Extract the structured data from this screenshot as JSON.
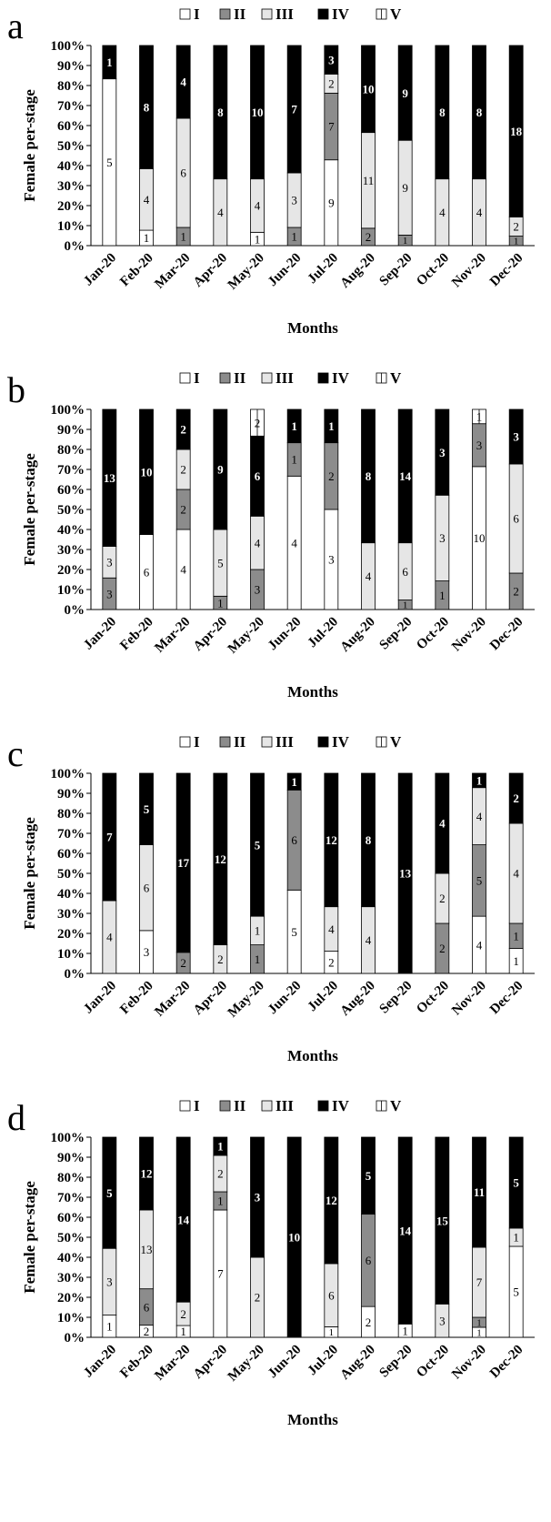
{
  "legend": [
    "I",
    "II",
    "III",
    "IV",
    "V"
  ],
  "colors": {
    "I": "#ffffff",
    "II": "#8c8c8c",
    "III": "#e6e6e6",
    "IV": "#000000",
    "V": "#ffffff"
  },
  "chart_data": [
    {
      "type": "bar",
      "panel_label": "a",
      "categories": [
        "Jan-20",
        "Feb-20",
        "Mar-20",
        "Apr-20",
        "May-20",
        "Jun-20",
        "Jul-20",
        "Aug-20",
        "Sep-20",
        "Oct-20",
        "Nov-20",
        "Dec-20"
      ],
      "series": [
        {
          "name": "I",
          "values": [
            5,
            1,
            0,
            0,
            1,
            0,
            9,
            0,
            0,
            0,
            0,
            0
          ]
        },
        {
          "name": "II",
          "values": [
            0,
            0,
            1,
            0,
            0,
            1,
            7,
            2,
            1,
            0,
            0,
            1
          ]
        },
        {
          "name": "III",
          "values": [
            0,
            4,
            6,
            4,
            4,
            3,
            2,
            11,
            9,
            4,
            4,
            2
          ]
        },
        {
          "name": "IV",
          "values": [
            1,
            8,
            4,
            8,
            10,
            7,
            3,
            10,
            9,
            8,
            8,
            18
          ]
        },
        {
          "name": "V",
          "values": [
            0,
            0,
            0,
            0,
            0,
            0,
            0,
            0,
            0,
            0,
            0,
            0
          ]
        }
      ],
      "ylabel": "Female per-stage",
      "xlabel": "Months",
      "yticks": [
        "0%",
        "10%",
        "20%",
        "30%",
        "40%",
        "50%",
        "60%",
        "70%",
        "80%",
        "90%",
        "100%"
      ],
      "ylim": [
        0,
        100
      ],
      "stacked": "percent"
    },
    {
      "type": "bar",
      "panel_label": "b",
      "categories": [
        "Jan-20",
        "Feb-20",
        "Mar-20",
        "Apr-20",
        "May-20",
        "Jun-20",
        "Jul-20",
        "Aug-20",
        "Sep-20",
        "Oct-20",
        "Nov-20",
        "Dec-20"
      ],
      "series": [
        {
          "name": "I",
          "values": [
            0,
            6,
            4,
            0,
            0,
            4,
            3,
            0,
            0,
            0,
            10,
            0
          ]
        },
        {
          "name": "II",
          "values": [
            3,
            0,
            2,
            1,
            3,
            1,
            2,
            0,
            1,
            1,
            3,
            2
          ]
        },
        {
          "name": "III",
          "values": [
            3,
            0,
            2,
            5,
            4,
            0,
            0,
            4,
            6,
            3,
            0,
            6
          ]
        },
        {
          "name": "IV",
          "values": [
            13,
            10,
            2,
            9,
            6,
            1,
            1,
            8,
            14,
            3,
            0,
            3
          ]
        },
        {
          "name": "V",
          "values": [
            0,
            0,
            0,
            0,
            2,
            0,
            0,
            0,
            0,
            0,
            1,
            0
          ]
        }
      ],
      "ylabel": "Female per-stage",
      "xlabel": "Months",
      "yticks": [
        "0%",
        "10%",
        "20%",
        "30%",
        "40%",
        "50%",
        "60%",
        "70%",
        "80%",
        "90%",
        "100%"
      ],
      "ylim": [
        0,
        100
      ],
      "stacked": "percent"
    },
    {
      "type": "bar",
      "panel_label": "c",
      "categories": [
        "Jan-20",
        "Feb-20",
        "Mar-20",
        "Apr-20",
        "May-20",
        "Jun-20",
        "Jul-20",
        "Aug-20",
        "Sep-20",
        "Oct-20",
        "Nov-20",
        "Dec-20"
      ],
      "series": [
        {
          "name": "I",
          "values": [
            0,
            3,
            0,
            0,
            0,
            5,
            2,
            0,
            0,
            0,
            4,
            1
          ]
        },
        {
          "name": "II",
          "values": [
            0,
            0,
            2,
            0,
            1,
            6,
            0,
            0,
            0,
            2,
            5,
            1
          ]
        },
        {
          "name": "III",
          "values": [
            4,
            6,
            0,
            2,
            1,
            0,
            4,
            4,
            0,
            2,
            4,
            4
          ]
        },
        {
          "name": "IV",
          "values": [
            7,
            5,
            17,
            12,
            5,
            1,
            12,
            8,
            13,
            4,
            1,
            2
          ]
        },
        {
          "name": "V",
          "values": [
            0,
            0,
            0,
            0,
            0,
            0,
            0,
            0,
            0,
            0,
            0,
            0
          ]
        }
      ],
      "ylabel": "Female per-stage",
      "xlabel": "Months",
      "yticks": [
        "0%",
        "10%",
        "20%",
        "30%",
        "40%",
        "50%",
        "60%",
        "70%",
        "80%",
        "90%",
        "100%"
      ],
      "ylim": [
        0,
        100
      ],
      "stacked": "percent"
    },
    {
      "type": "bar",
      "panel_label": "d",
      "categories": [
        "Jan-20",
        "Feb-20",
        "Mar-20",
        "Apr-20",
        "May-20",
        "Jun-20",
        "Jul-20",
        "Aug-20",
        "Sep-20",
        "Oct-20",
        "Nov-20",
        "Dec-20"
      ],
      "series": [
        {
          "name": "I",
          "values": [
            1,
            2,
            1,
            7,
            0,
            0,
            1,
            2,
            1,
            0,
            1,
            5
          ]
        },
        {
          "name": "II",
          "values": [
            0,
            6,
            0,
            1,
            0,
            0,
            0,
            6,
            0,
            0,
            1,
            0
          ]
        },
        {
          "name": "III",
          "values": [
            3,
            13,
            2,
            2,
            2,
            0,
            6,
            0,
            0,
            3,
            7,
            1
          ]
        },
        {
          "name": "IV",
          "values": [
            5,
            12,
            14,
            1,
            3,
            10,
            12,
            5,
            14,
            15,
            11,
            5
          ]
        },
        {
          "name": "V",
          "values": [
            0,
            0,
            0,
            0,
            0,
            0,
            0,
            0,
            0,
            0,
            0,
            0
          ]
        }
      ],
      "ylabel": "Female per-stage",
      "xlabel": "Months",
      "yticks": [
        "0%",
        "10%",
        "20%",
        "30%",
        "40%",
        "50%",
        "60%",
        "70%",
        "80%",
        "90%",
        "100%"
      ],
      "ylim": [
        0,
        100
      ],
      "stacked": "percent"
    }
  ]
}
